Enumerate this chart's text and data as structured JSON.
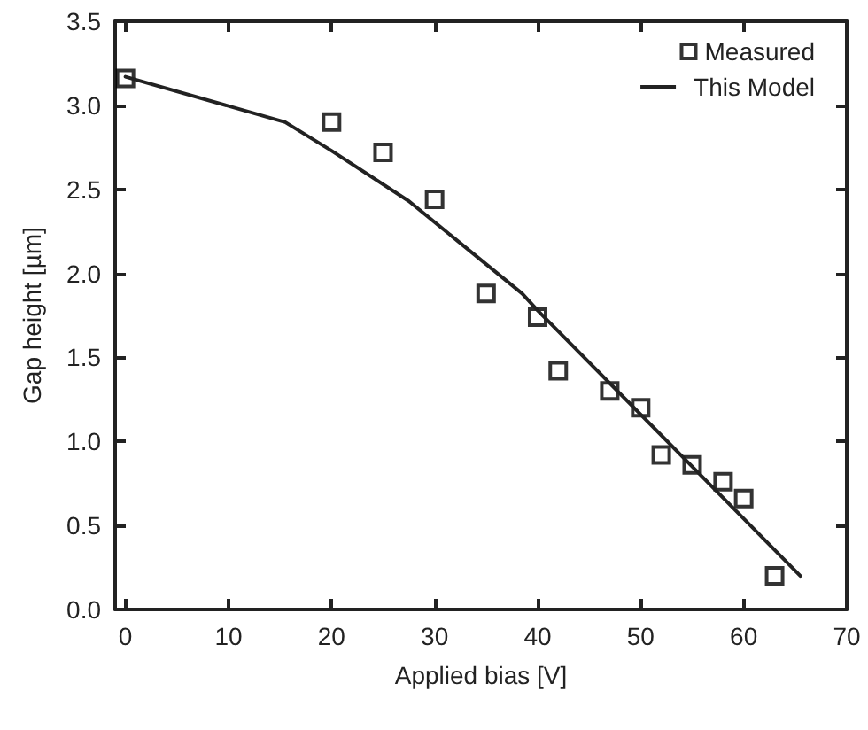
{
  "chart_data": {
    "type": "scatter",
    "xlabel": "Applied bias [V]",
    "ylabel": "Gap height [µm]",
    "xlim": [
      -1,
      70
    ],
    "xticks": [
      0,
      10,
      20,
      30,
      40,
      50,
      60,
      70
    ],
    "ylim": [
      0,
      3.5
    ],
    "yticks": [
      {
        "value": 0,
        "label": "0.0"
      },
      {
        "value": 0.5,
        "label": "0.5"
      },
      {
        "value": 1,
        "label": "1.0"
      },
      {
        "value": 1.5,
        "label": "1.5"
      },
      {
        "value": 2,
        "label": "2.0"
      },
      {
        "value": 2.5,
        "label": "2.5"
      },
      {
        "value": 3,
        "label": "3.0"
      },
      {
        "value": 3.5,
        "label": "3.5"
      }
    ],
    "grid": false,
    "legend": "top right",
    "series": [
      {
        "name": "Measured",
        "marker": "square",
        "color": "#000000",
        "x": [
          0,
          20,
          25,
          30,
          35,
          40,
          42,
          47,
          50,
          52,
          55,
          58,
          60,
          63
        ],
        "values": [
          3.16,
          2.9,
          2.72,
          2.44,
          1.88,
          1.74,
          1.42,
          1.3,
          1.2,
          0.92,
          0.86,
          0.76,
          0.66,
          0.2
        ]
      },
      {
        "name": "This Model",
        "type": "line",
        "marker": "none",
        "line_style": "solid",
        "color": "#222222",
        "x": [
          0,
          15.5,
          20,
          27.5,
          38.5,
          40,
          65.5
        ],
        "values": [
          3.17,
          2.9,
          2.73,
          2.43,
          1.88,
          1.78,
          0.2
        ]
      }
    ]
  }
}
